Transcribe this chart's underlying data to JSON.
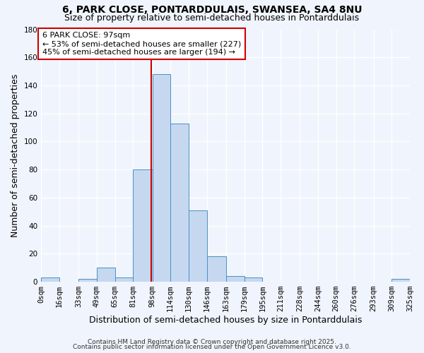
{
  "title": "6, PARK CLOSE, PONTARDDULAIS, SWANSEA, SA4 8NU",
  "subtitle": "Size of property relative to semi-detached houses in Pontarddulais",
  "xlabel": "Distribution of semi-detached houses by size in Pontarddulais",
  "ylabel": "Number of semi-detached properties",
  "bin_edges": [
    0,
    16,
    33,
    49,
    65,
    81,
    98,
    114,
    130,
    146,
    163,
    179,
    195,
    211,
    228,
    244,
    260,
    276,
    293,
    309,
    325
  ],
  "bin_labels": [
    "0sqm",
    "16sqm",
    "33sqm",
    "49sqm",
    "65sqm",
    "81sqm",
    "98sqm",
    "114sqm",
    "130sqm",
    "146sqm",
    "163sqm",
    "179sqm",
    "195sqm",
    "211sqm",
    "228sqm",
    "244sqm",
    "260sqm",
    "276sqm",
    "293sqm",
    "309sqm",
    "325sqm"
  ],
  "counts": [
    3,
    0,
    2,
    10,
    3,
    80,
    148,
    113,
    51,
    18,
    4,
    3,
    0,
    0,
    0,
    0,
    0,
    0,
    0,
    2
  ],
  "bar_color": "#c5d8f0",
  "bar_edge_color": "#4a90c4",
  "property_value": 97,
  "vline_color": "#cc0000",
  "annotation_line1": "6 PARK CLOSE: 97sqm",
  "annotation_line2": "← 53% of semi-detached houses are smaller (227)",
  "annotation_line3": "45% of semi-detached houses are larger (194) →",
  "annotation_box_color": "#ffffff",
  "annotation_box_edge_color": "#cc0000",
  "ylim": [
    0,
    180
  ],
  "yticks": [
    0,
    20,
    40,
    60,
    80,
    100,
    120,
    140,
    160,
    180
  ],
  "footer1": "Contains HM Land Registry data © Crown copyright and database right 2025.",
  "footer2": "Contains public sector information licensed under the Open Government Licence v3.0.",
  "bg_color": "#f0f4fc",
  "grid_color": "#ffffff",
  "title_fontsize": 10,
  "subtitle_fontsize": 9,
  "axis_label_fontsize": 9,
  "tick_fontsize": 7.5,
  "footer_fontsize": 6.5,
  "annotation_fontsize": 8
}
